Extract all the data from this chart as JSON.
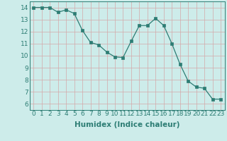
{
  "x": [
    0,
    1,
    2,
    3,
    4,
    5,
    6,
    7,
    8,
    9,
    10,
    11,
    12,
    13,
    14,
    15,
    16,
    17,
    18,
    19,
    20,
    21,
    22,
    23
  ],
  "y": [
    14.0,
    14.0,
    14.0,
    13.6,
    13.8,
    13.5,
    12.1,
    11.1,
    10.9,
    10.3,
    9.9,
    9.85,
    11.2,
    12.5,
    12.5,
    13.1,
    12.5,
    11.0,
    9.3,
    7.9,
    7.4,
    7.3,
    6.4,
    6.4
  ],
  "xlabel": "Humidex (Indice chaleur)",
  "xlim": [
    -0.5,
    23.5
  ],
  "ylim": [
    5.5,
    14.5
  ],
  "yticks": [
    6,
    7,
    8,
    9,
    10,
    11,
    12,
    13,
    14
  ],
  "xticks": [
    0,
    1,
    2,
    3,
    4,
    5,
    6,
    7,
    8,
    9,
    10,
    11,
    12,
    13,
    14,
    15,
    16,
    17,
    18,
    19,
    20,
    21,
    22,
    23
  ],
  "line_color": "#2d7d74",
  "marker_color": "#2d7d74",
  "bg_color": "#cdecea",
  "grid_color_v": "#d4a8a8",
  "grid_color_h": "#d4a8a8",
  "tick_fontsize": 6.5,
  "label_fontsize": 7.5
}
